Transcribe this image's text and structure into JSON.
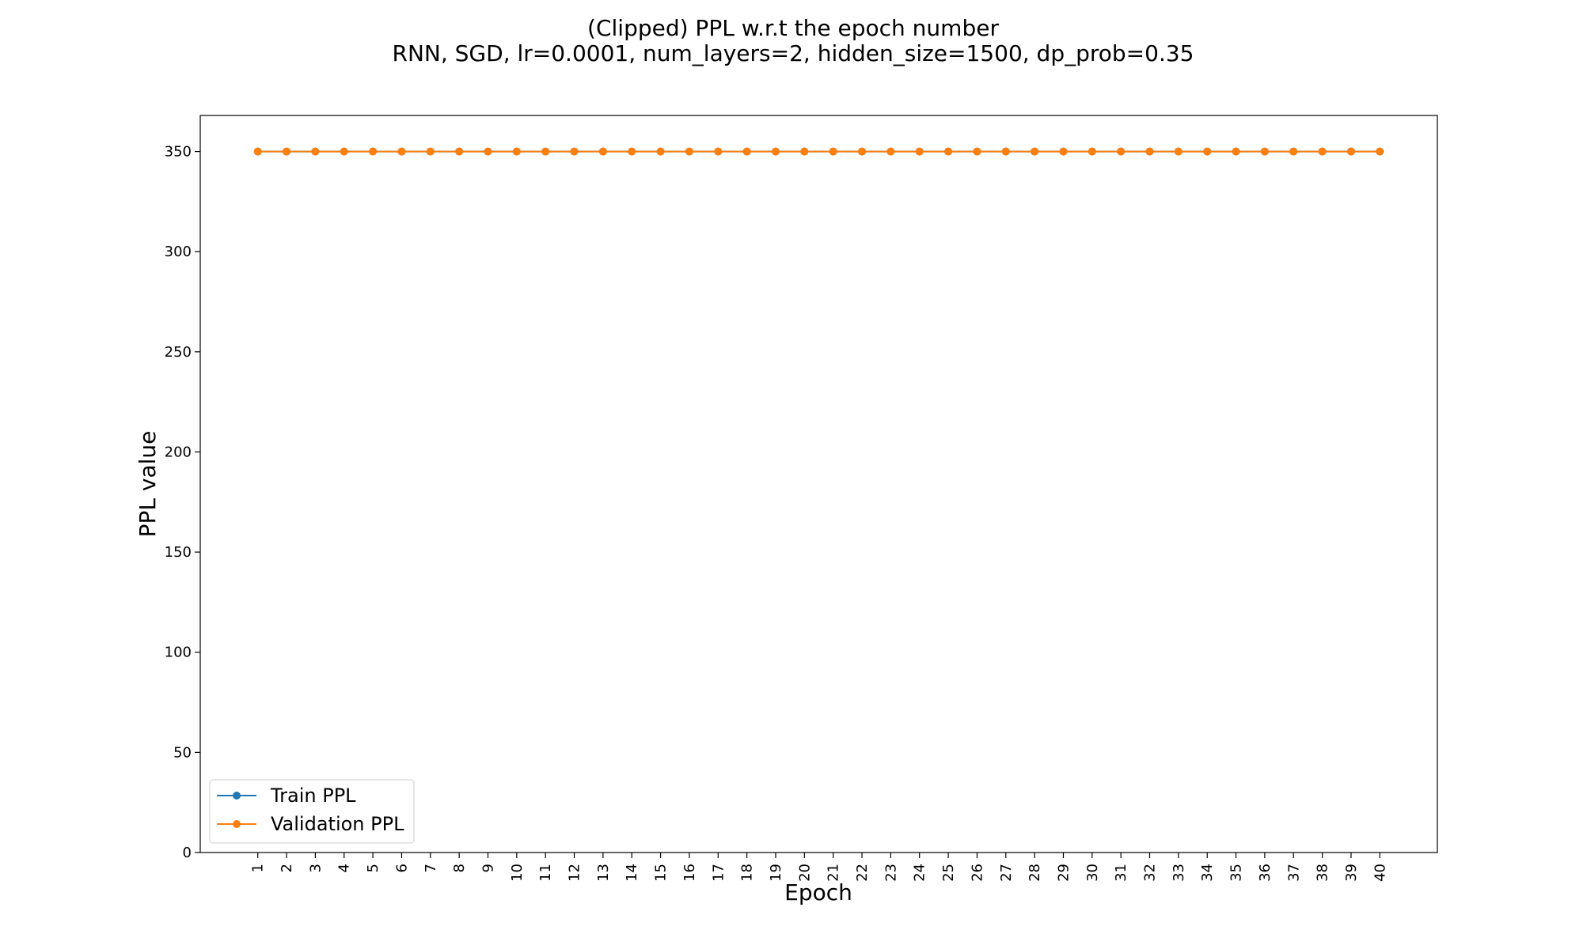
{
  "chart_data": {
    "type": "line",
    "title": "(Clipped) PPL w.r.t the epoch number",
    "subtitle": "RNN, SGD, lr=0.0001,  num_layers=2,  hidden_size=1500,  dp_prob=0.35",
    "xlabel": "Epoch",
    "ylabel": "PPL value",
    "x": [
      1,
      2,
      3,
      4,
      5,
      6,
      7,
      8,
      9,
      10,
      11,
      12,
      13,
      14,
      15,
      16,
      17,
      18,
      19,
      20,
      21,
      22,
      23,
      24,
      25,
      26,
      27,
      28,
      29,
      30,
      31,
      32,
      33,
      34,
      35,
      36,
      37,
      38,
      39,
      40
    ],
    "xlim": [
      -1,
      42
    ],
    "ylim": [
      0,
      368
    ],
    "yticks": [
      0,
      50,
      100,
      150,
      200,
      250,
      300,
      350
    ],
    "grid": false,
    "legend_position": "lower-left",
    "series": [
      {
        "name": "Train PPL",
        "color": "#1f77b4",
        "values": [
          350,
          350,
          350,
          350,
          350,
          350,
          350,
          350,
          350,
          350,
          350,
          350,
          350,
          350,
          350,
          350,
          350,
          350,
          350,
          350,
          350,
          350,
          350,
          350,
          350,
          350,
          350,
          350,
          350,
          350,
          350,
          350,
          350,
          350,
          350,
          350,
          350,
          350,
          350,
          350
        ]
      },
      {
        "name": "Validation PPL",
        "color": "#ff7f0e",
        "values": [
          350,
          350,
          350,
          350,
          350,
          350,
          350,
          350,
          350,
          350,
          350,
          350,
          350,
          350,
          350,
          350,
          350,
          350,
          350,
          350,
          350,
          350,
          350,
          350,
          350,
          350,
          350,
          350,
          350,
          350,
          350,
          350,
          350,
          350,
          350,
          350,
          350,
          350,
          350,
          350
        ]
      }
    ]
  }
}
